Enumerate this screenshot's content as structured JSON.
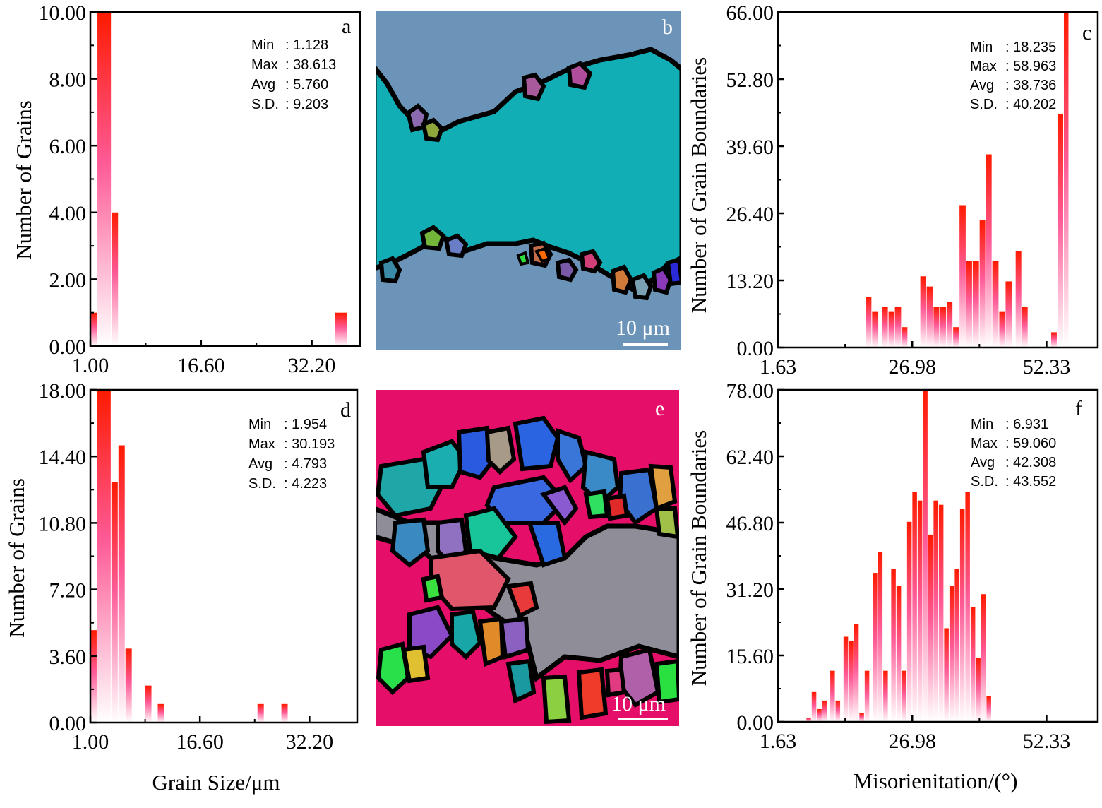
{
  "gradient": {
    "top": "#ff1a00",
    "mid": "#ff5a96",
    "bottom": "#ffffff"
  },
  "histograms": [
    {
      "id": "a",
      "label": "a",
      "ylabel": "Number of Grains",
      "xlabel": "",
      "xticks": [
        "1.00",
        "16.60",
        "32.20"
      ],
      "xtick_values": [
        1.0,
        16.6,
        32.2
      ],
      "xlim": [
        1.0,
        39.0
      ],
      "yticks": [
        "0.00",
        "2.00",
        "4.00",
        "6.00",
        "8.00",
        "10.00"
      ],
      "ylim": [
        0,
        10
      ],
      "stats": [
        [
          "Min",
          ": 1.128"
        ],
        [
          "Max",
          ": 38.613"
        ],
        [
          "Avg",
          ": 5.760"
        ],
        [
          "S.D.",
          ": 9.203"
        ]
      ],
      "bars": [
        [
          1.0,
          2.0,
          1
        ],
        [
          2.0,
          4.0,
          10
        ],
        [
          4.0,
          5.0,
          4
        ],
        [
          35.5,
          37.3,
          1
        ]
      ]
    },
    {
      "id": "d",
      "label": "d",
      "ylabel": "Number of Grains",
      "xlabel": "Grain Size/μm",
      "xticks": [
        "1.00",
        "16.60",
        "32.20"
      ],
      "xtick_values": [
        1.0,
        16.6,
        32.2
      ],
      "xlim": [
        1.0,
        39.0
      ],
      "yticks": [
        "0.00",
        "3.60",
        "7.20",
        "10.80",
        "14.40",
        "18.00"
      ],
      "ylim": [
        0,
        18
      ],
      "stats": [
        [
          "Min",
          ": 1.954"
        ],
        [
          "Max",
          ": 30.193"
        ],
        [
          "Avg",
          ": 4.793"
        ],
        [
          "S.D.",
          ": 4.223"
        ]
      ],
      "bars": [
        [
          1.0,
          2.0,
          5
        ],
        [
          2.0,
          4.0,
          18
        ],
        [
          4.0,
          5.0,
          13
        ],
        [
          5.0,
          6.0,
          15
        ],
        [
          6.0,
          7.0,
          4
        ],
        [
          8.8,
          9.8,
          2
        ],
        [
          10.6,
          11.6,
          1
        ],
        [
          24.8,
          25.8,
          1
        ],
        [
          28.2,
          29.2,
          1
        ]
      ]
    },
    {
      "id": "c",
      "label": "c",
      "ylabel": "Number of Grain Boundaries",
      "xlabel": "",
      "xticks": [
        "1.63",
        "26.98",
        "52.33"
      ],
      "xtick_values": [
        1.63,
        26.98,
        52.33
      ],
      "xlim": [
        1.63,
        62.0
      ],
      "yticks": [
        "0.00",
        "13.20",
        "26.40",
        "39.60",
        "52.80",
        "66.00"
      ],
      "ylim": [
        0,
        66
      ],
      "stats": [
        [
          "Min",
          ":  18.235"
        ],
        [
          "Max",
          ":  58.963"
        ],
        [
          "Avg",
          ":  38.736"
        ],
        [
          "S.D.",
          ":  40.202"
        ]
      ],
      "bars": [
        [
          18.2,
          19.4,
          10
        ],
        [
          19.4,
          20.7,
          7
        ],
        [
          21.3,
          22.5,
          8
        ],
        [
          22.5,
          23.7,
          7
        ],
        [
          23.7,
          25.0,
          8
        ],
        [
          25.0,
          26.2,
          4
        ],
        [
          28.5,
          29.7,
          14
        ],
        [
          29.7,
          31.0,
          12
        ],
        [
          31.0,
          32.2,
          8
        ],
        [
          32.2,
          33.5,
          8
        ],
        [
          33.5,
          34.7,
          9
        ],
        [
          34.7,
          35.9,
          4
        ],
        [
          35.9,
          37.2,
          28
        ],
        [
          37.2,
          38.4,
          17
        ],
        [
          38.4,
          39.7,
          17
        ],
        [
          39.7,
          40.9,
          25
        ],
        [
          40.9,
          42.1,
          38
        ],
        [
          42.1,
          43.4,
          17
        ],
        [
          43.4,
          44.6,
          7
        ],
        [
          44.6,
          45.9,
          13
        ],
        [
          46.5,
          47.7,
          19
        ],
        [
          47.7,
          48.9,
          8
        ],
        [
          53.2,
          54.4,
          3
        ],
        [
          54.4,
          55.6,
          46
        ],
        [
          55.6,
          56.6,
          66
        ]
      ]
    },
    {
      "id": "f",
      "label": "f",
      "ylabel": "Number of Grain Boundaries",
      "xlabel": "Misorienitation/(°)",
      "xticks": [
        "1.63",
        "26.98",
        "52.33"
      ],
      "xtick_values": [
        1.63,
        26.98,
        52.33
      ],
      "xlim": [
        1.63,
        62.0
      ],
      "yticks": [
        "0.00",
        "15.60",
        "31.20",
        "46.80",
        "62.40",
        "78.00"
      ],
      "ylim": [
        0,
        78
      ],
      "stats": [
        [
          "Min",
          ":  6.931"
        ],
        [
          "Max",
          ":  59.060"
        ],
        [
          "Avg",
          ":  42.308"
        ],
        [
          "S.D.",
          ":  43.552"
        ]
      ],
      "bars": [
        [
          7.0,
          8.0,
          1
        ],
        [
          8.0,
          9.0,
          7
        ],
        [
          9.0,
          10.0,
          3
        ],
        [
          10.0,
          11.0,
          5
        ],
        [
          11.5,
          12.5,
          12
        ],
        [
          12.5,
          13.5,
          5
        ],
        [
          14.0,
          15.0,
          20
        ],
        [
          15.0,
          16.0,
          19
        ],
        [
          16.0,
          17.0,
          23
        ],
        [
          17.0,
          18.0,
          2
        ],
        [
          18.0,
          19.0,
          12
        ],
        [
          19.5,
          20.5,
          35
        ],
        [
          20.5,
          21.5,
          40
        ],
        [
          21.5,
          22.5,
          12
        ],
        [
          23.0,
          24.0,
          36
        ],
        [
          24.0,
          25.0,
          32
        ],
        [
          25.0,
          26.0,
          12
        ],
        [
          26.0,
          27.0,
          47
        ],
        [
          27.0,
          28.0,
          54
        ],
        [
          28.0,
          29.0,
          52
        ],
        [
          29.0,
          30.0,
          78
        ],
        [
          30.0,
          31.0,
          44
        ],
        [
          31.0,
          32.0,
          52
        ],
        [
          32.0,
          33.0,
          51
        ],
        [
          33.0,
          34.0,
          22
        ],
        [
          34.0,
          35.0,
          32
        ],
        [
          35.0,
          36.0,
          36
        ],
        [
          36.0,
          37.0,
          50
        ],
        [
          37.0,
          38.0,
          54
        ],
        [
          38.0,
          39.0,
          27
        ],
        [
          39.0,
          40.0,
          15
        ],
        [
          40.0,
          41.0,
          30
        ],
        [
          41.0,
          42.0,
          6
        ]
      ]
    }
  ],
  "maps": [
    {
      "id": "b",
      "label": "b",
      "scale": "10 μm",
      "matrix_top": "#6b94b8",
      "matrix_mid": "#12aeb6",
      "matrix_bottom": "#6b94b8"
    },
    {
      "id": "e",
      "label": "e",
      "scale": "10 μm",
      "matrix_top": "#e50f6a",
      "matrix_mid": "#8f8d97",
      "matrix_bottom": "#e50f6a"
    }
  ],
  "chart_data": [
    {
      "type": "bar",
      "panel": "a",
      "ylabel": "Number of Grains",
      "xlabel": "",
      "xlim": [
        1.0,
        39.0
      ],
      "ylim": [
        0,
        10
      ],
      "x": [
        1.5,
        3.0,
        4.5,
        36.4
      ],
      "values": [
        1,
        10,
        4,
        1
      ]
    },
    {
      "type": "bar",
      "panel": "c",
      "ylabel": "Number of Grain Boundaries",
      "xlabel": "",
      "xlim": [
        1.63,
        62.0
      ],
      "ylim": [
        0,
        66
      ],
      "x": [
        18.8,
        20.0,
        21.9,
        23.1,
        24.3,
        25.6,
        29.1,
        30.3,
        31.6,
        32.8,
        34.1,
        35.3,
        36.5,
        37.8,
        39.0,
        40.3,
        41.5,
        42.7,
        44.0,
        45.2,
        47.1,
        48.3,
        53.8,
        55.0,
        56.1
      ],
      "values": [
        10,
        7,
        8,
        7,
        8,
        4,
        14,
        12,
        8,
        8,
        9,
        4,
        28,
        17,
        17,
        25,
        38,
        17,
        7,
        13,
        19,
        8,
        3,
        46,
        66
      ]
    },
    {
      "type": "bar",
      "panel": "d",
      "ylabel": "Number of Grains",
      "xlabel": "Grain Size/μm",
      "xlim": [
        1.0,
        39.0
      ],
      "ylim": [
        0,
        18
      ],
      "x": [
        1.5,
        3.0,
        4.5,
        5.5,
        6.5,
        9.3,
        11.1,
        25.3,
        28.7
      ],
      "values": [
        5,
        18,
        13,
        15,
        4,
        2,
        1,
        1,
        1
      ]
    },
    {
      "type": "bar",
      "panel": "f",
      "ylabel": "Number of Grain Boundaries",
      "xlabel": "Misorienitation/(°)",
      "xlim": [
        1.63,
        62.0
      ],
      "ylim": [
        0,
        78
      ],
      "x": [
        7.5,
        8.5,
        9.5,
        10.5,
        12.0,
        13.0,
        14.5,
        15.5,
        16.5,
        17.5,
        18.5,
        20.0,
        21.0,
        22.0,
        23.5,
        24.5,
        25.5,
        26.5,
        27.5,
        28.5,
        29.5,
        30.5,
        31.5,
        32.5,
        33.5,
        34.5,
        35.5,
        36.5,
        37.5,
        38.5,
        39.5,
        40.5,
        41.5
      ],
      "values": [
        1,
        7,
        3,
        5,
        12,
        5,
        20,
        19,
        23,
        2,
        12,
        35,
        40,
        12,
        36,
        32,
        12,
        47,
        54,
        52,
        78,
        44,
        52,
        51,
        22,
        32,
        36,
        50,
        54,
        27,
        15,
        30,
        6
      ]
    }
  ]
}
